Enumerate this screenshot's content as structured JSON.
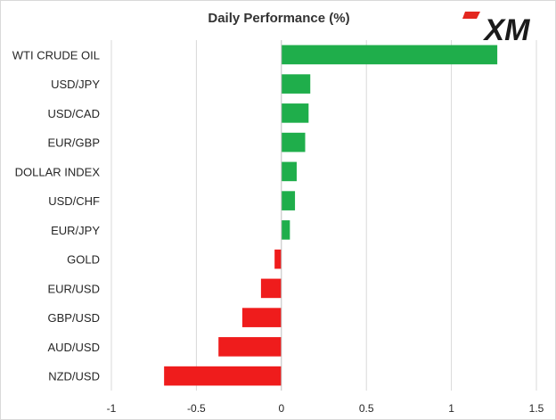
{
  "brand": {
    "logo_text": "XM",
    "logo_color": "#1a1a1a",
    "accent_color": "#e3271f"
  },
  "chart_data": {
    "type": "bar",
    "orientation": "horizontal",
    "title": "Daily Performance (%)",
    "categories": [
      "WTI CRUDE OIL",
      "USD/JPY",
      "USD/CAD",
      "EUR/GBP",
      "DOLLAR INDEX",
      "USD/CHF",
      "EUR/JPY",
      "GOLD",
      "EUR/USD",
      "GBP/USD",
      "AUD/USD",
      "NZD/USD"
    ],
    "values": [
      1.27,
      0.17,
      0.16,
      0.14,
      0.09,
      0.08,
      0.05,
      -0.04,
      -0.12,
      -0.23,
      -0.37,
      -0.69
    ],
    "xlim": [
      -1,
      1.5
    ],
    "xticks": [
      "-1",
      "-0.5",
      "0",
      "0.5",
      "1",
      "1.5"
    ],
    "xtick_values": [
      -1,
      -0.5,
      0,
      0.5,
      1,
      1.5
    ],
    "gridlines": true,
    "colors": {
      "positive": "#1fae4b",
      "negative": "#ef1c1c",
      "grid": "#d9d9d9",
      "axis": "#bfbfbf"
    }
  }
}
